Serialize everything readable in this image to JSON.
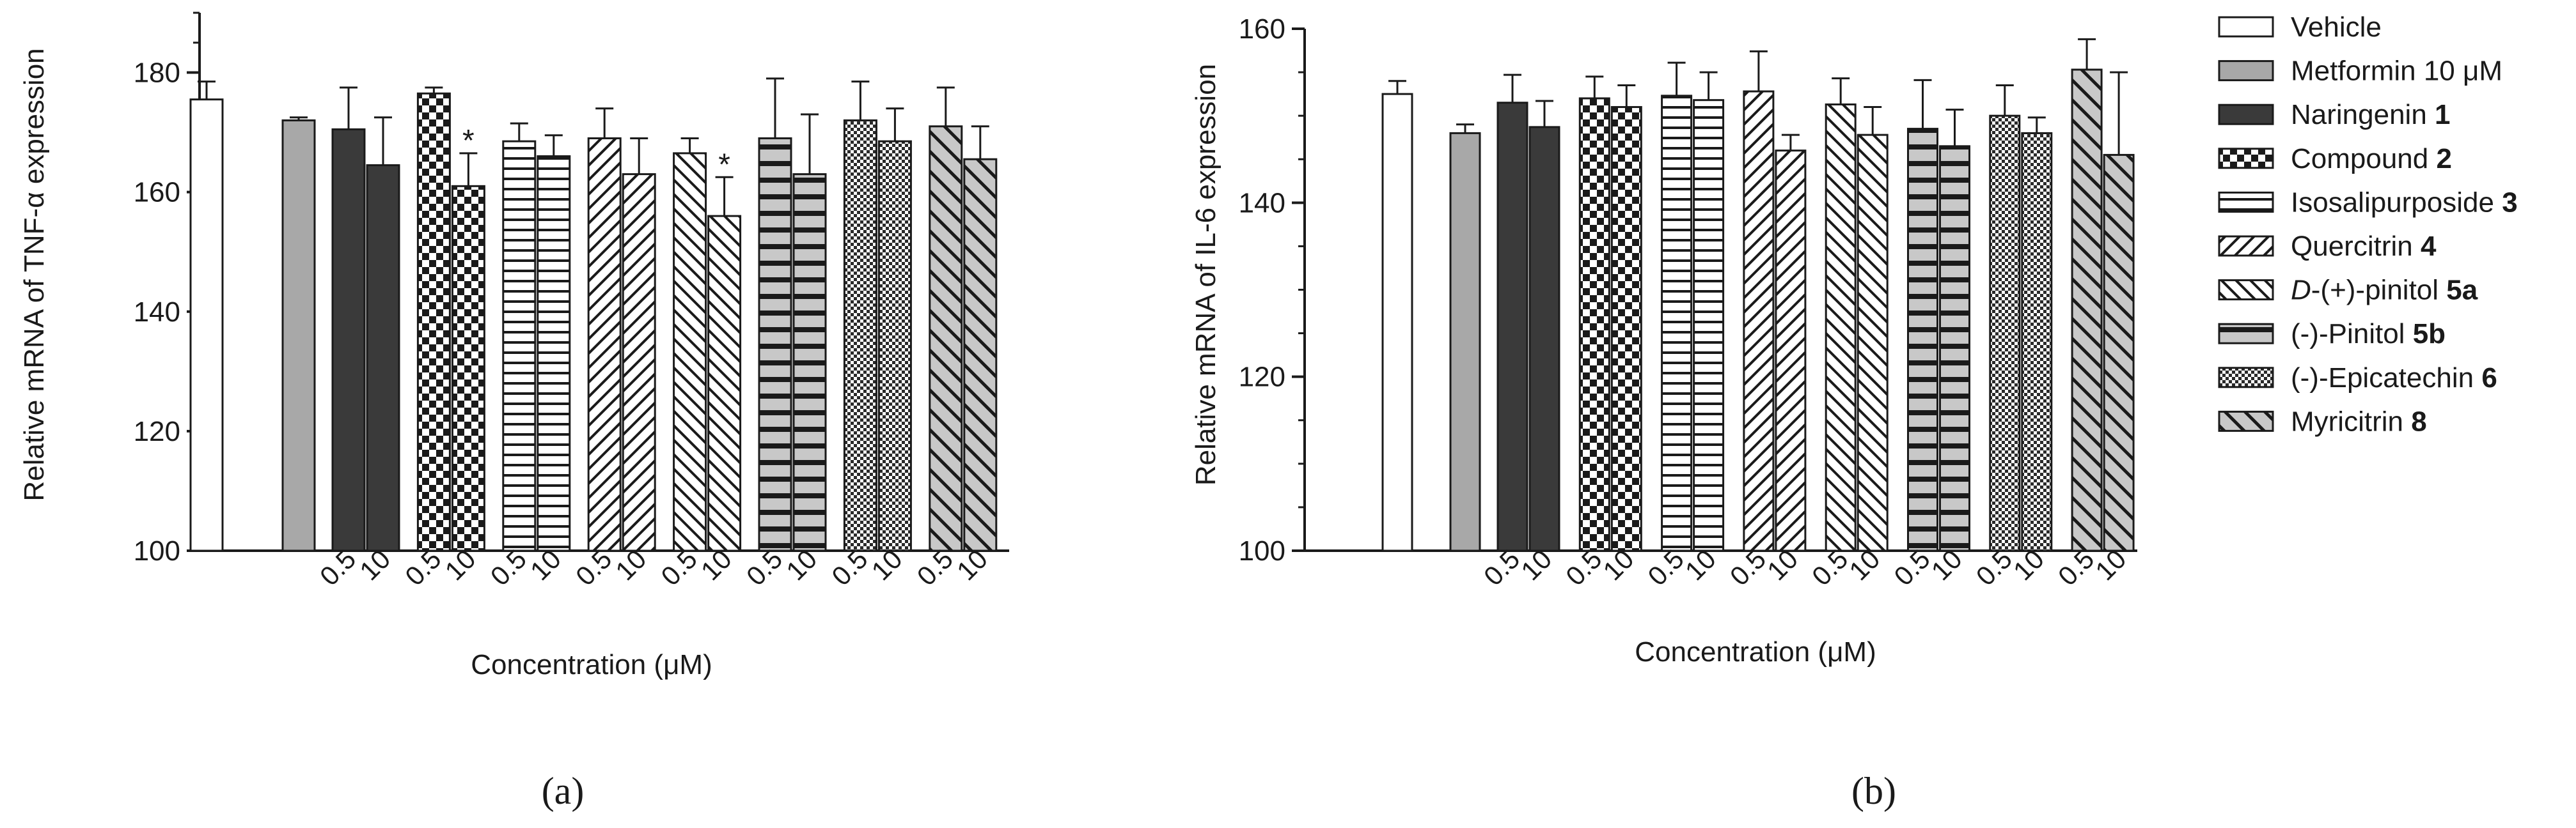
{
  "chart_data": [
    {
      "type": "bar",
      "panel_label": "(a)",
      "ylabel": "Relative mRNA of TNF-α expression",
      "xlabel": "Concentration (μM)",
      "ylim": [
        100,
        190
      ],
      "yticks": [
        100,
        120,
        140,
        160,
        180
      ],
      "yminor_step": 5,
      "bars": [
        {
          "group": "Vehicle",
          "dose": "",
          "value": 175.5,
          "error": 3.0,
          "sig": ""
        },
        {
          "group": "Metformin 10 μM",
          "dose": "",
          "value": 172.0,
          "error": 0.5,
          "sig": ""
        },
        {
          "group": "Naringenin 1",
          "dose": "0.5",
          "value": 170.5,
          "error": 7.0,
          "sig": ""
        },
        {
          "group": "Naringenin 1",
          "dose": "10",
          "value": 164.5,
          "error": 8.0,
          "sig": ""
        },
        {
          "group": "Compound 2",
          "dose": "0.5",
          "value": 176.5,
          "error": 1.0,
          "sig": ""
        },
        {
          "group": "Compound 2",
          "dose": "10",
          "value": 161.0,
          "error": 5.5,
          "sig": "*"
        },
        {
          "group": "Isosalipurposide 3",
          "dose": "0.5",
          "value": 168.5,
          "error": 3.0,
          "sig": ""
        },
        {
          "group": "Isosalipurposide 3",
          "dose": "10",
          "value": 166.0,
          "error": 3.5,
          "sig": ""
        },
        {
          "group": "Quercitrin 4",
          "dose": "0.5",
          "value": 169.0,
          "error": 5.0,
          "sig": ""
        },
        {
          "group": "Quercitrin 4",
          "dose": "10",
          "value": 163.0,
          "error": 6.0,
          "sig": ""
        },
        {
          "group": "D-(+)-pinitol 5a",
          "dose": "0.5",
          "value": 166.5,
          "error": 2.5,
          "sig": ""
        },
        {
          "group": "D-(+)-pinitol 5a",
          "dose": "10",
          "value": 156.0,
          "error": 6.5,
          "sig": "*"
        },
        {
          "group": "(-)-Pinitol 5b",
          "dose": "0.5",
          "value": 169.0,
          "error": 10.0,
          "sig": ""
        },
        {
          "group": "(-)-Pinitol 5b",
          "dose": "10",
          "value": 163.0,
          "error": 10.0,
          "sig": ""
        },
        {
          "group": "(-)-Epicatechin 6",
          "dose": "0.5",
          "value": 172.0,
          "error": 6.5,
          "sig": ""
        },
        {
          "group": "(-)-Epicatechin 6",
          "dose": "10",
          "value": 168.5,
          "error": 5.5,
          "sig": ""
        },
        {
          "group": "Myricitrin 8",
          "dose": "0.5",
          "value": 171.0,
          "error": 6.5,
          "sig": ""
        },
        {
          "group": "Myricitrin 8",
          "dose": "10",
          "value": 165.5,
          "error": 5.5,
          "sig": ""
        }
      ]
    },
    {
      "type": "bar",
      "panel_label": "(b)",
      "ylabel": "Relative mRNA of IL-6 expression",
      "xlabel": "Concentration (μM)",
      "ylim": [
        100,
        160
      ],
      "yticks": [
        100,
        120,
        140,
        160
      ],
      "yminor_step": 5,
      "bars": [
        {
          "group": "Vehicle",
          "dose": "",
          "value": 152.5,
          "error": 1.5,
          "sig": ""
        },
        {
          "group": "Metformin 10 μM",
          "dose": "",
          "value": 148.0,
          "error": 1.0,
          "sig": ""
        },
        {
          "group": "Naringenin 1",
          "dose": "0.5",
          "value": 151.5,
          "error": 3.2,
          "sig": ""
        },
        {
          "group": "Naringenin 1",
          "dose": "10",
          "value": 148.7,
          "error": 3.0,
          "sig": ""
        },
        {
          "group": "Compound 2",
          "dose": "0.5",
          "value": 152.0,
          "error": 2.5,
          "sig": ""
        },
        {
          "group": "Compound 2",
          "dose": "10",
          "value": 151.0,
          "error": 2.5,
          "sig": ""
        },
        {
          "group": "Isosalipurposide 3",
          "dose": "0.5",
          "value": 152.3,
          "error": 3.8,
          "sig": ""
        },
        {
          "group": "Isosalipurposide 3",
          "dose": "10",
          "value": 151.8,
          "error": 3.2,
          "sig": ""
        },
        {
          "group": "Quercitrin 4",
          "dose": "0.5",
          "value": 152.8,
          "error": 4.6,
          "sig": ""
        },
        {
          "group": "Quercitrin 4",
          "dose": "10",
          "value": 146.0,
          "error": 1.8,
          "sig": ""
        },
        {
          "group": "D-(+)-pinitol 5a",
          "dose": "0.5",
          "value": 151.3,
          "error": 3.0,
          "sig": ""
        },
        {
          "group": "D-(+)-pinitol 5a",
          "dose": "10",
          "value": 147.8,
          "error": 3.2,
          "sig": ""
        },
        {
          "group": "(-)-Pinitol 5b",
          "dose": "0.5",
          "value": 148.5,
          "error": 5.6,
          "sig": ""
        },
        {
          "group": "(-)-Pinitol 5b",
          "dose": "10",
          "value": 146.5,
          "error": 4.2,
          "sig": ""
        },
        {
          "group": "(-)-Epicatechin 6",
          "dose": "0.5",
          "value": 150.0,
          "error": 3.5,
          "sig": ""
        },
        {
          "group": "(-)-Epicatechin 6",
          "dose": "10",
          "value": 148.0,
          "error": 1.8,
          "sig": ""
        },
        {
          "group": "Myricitrin 8",
          "dose": "0.5",
          "value": 155.3,
          "error": 3.5,
          "sig": ""
        },
        {
          "group": "Myricitrin 8",
          "dose": "10",
          "value": 145.5,
          "error": 9.5,
          "sig": ""
        }
      ]
    }
  ],
  "legend": [
    {
      "name": "Vehicle",
      "label": "Vehicle",
      "bold": "",
      "italic_prefix": "",
      "pattern": "white"
    },
    {
      "name": "Metformin 10 μM",
      "label": "Metformin 10 μM",
      "bold": "",
      "italic_prefix": "",
      "pattern": "gray"
    },
    {
      "name": "Naringenin 1",
      "label": "Naringenin ",
      "bold": "1",
      "italic_prefix": "",
      "pattern": "dark"
    },
    {
      "name": "Compound 2",
      "label": "Compound ",
      "bold": "2",
      "italic_prefix": "",
      "pattern": "checker"
    },
    {
      "name": "Isosalipurposide 3",
      "label": "Isosalipurposide ",
      "bold": "3",
      "italic_prefix": "",
      "pattern": "hlines"
    },
    {
      "name": "Quercitrin 4",
      "label": "Quercitrin ",
      "bold": "4",
      "italic_prefix": "",
      "pattern": "fdiag"
    },
    {
      "name": "D-(+)-pinitol 5a",
      "label": "-(+)-pinitol ",
      "bold": "5a",
      "italic_prefix": "D",
      "pattern": "bdiag"
    },
    {
      "name": "(-)-Pinitol 5b",
      "label": "(-)-Pinitol ",
      "bold": "5b",
      "italic_prefix": "",
      "pattern": "graystripes"
    },
    {
      "name": "(-)-Epicatechin 6",
      "label": "(-)-Epicatechin ",
      "bold": "6",
      "italic_prefix": "",
      "pattern": "smallcheck"
    },
    {
      "name": "Myricitrin 8",
      "label": "Myricitrin ",
      "bold": "8",
      "italic_prefix": "",
      "pattern": "graydiag"
    }
  ],
  "colors": {
    "axis": "#1a1a1a",
    "bar_gray": "#a8a8a8",
    "bar_dark": "#3a3a3a",
    "stripe_gray": "#c8c8c8"
  }
}
